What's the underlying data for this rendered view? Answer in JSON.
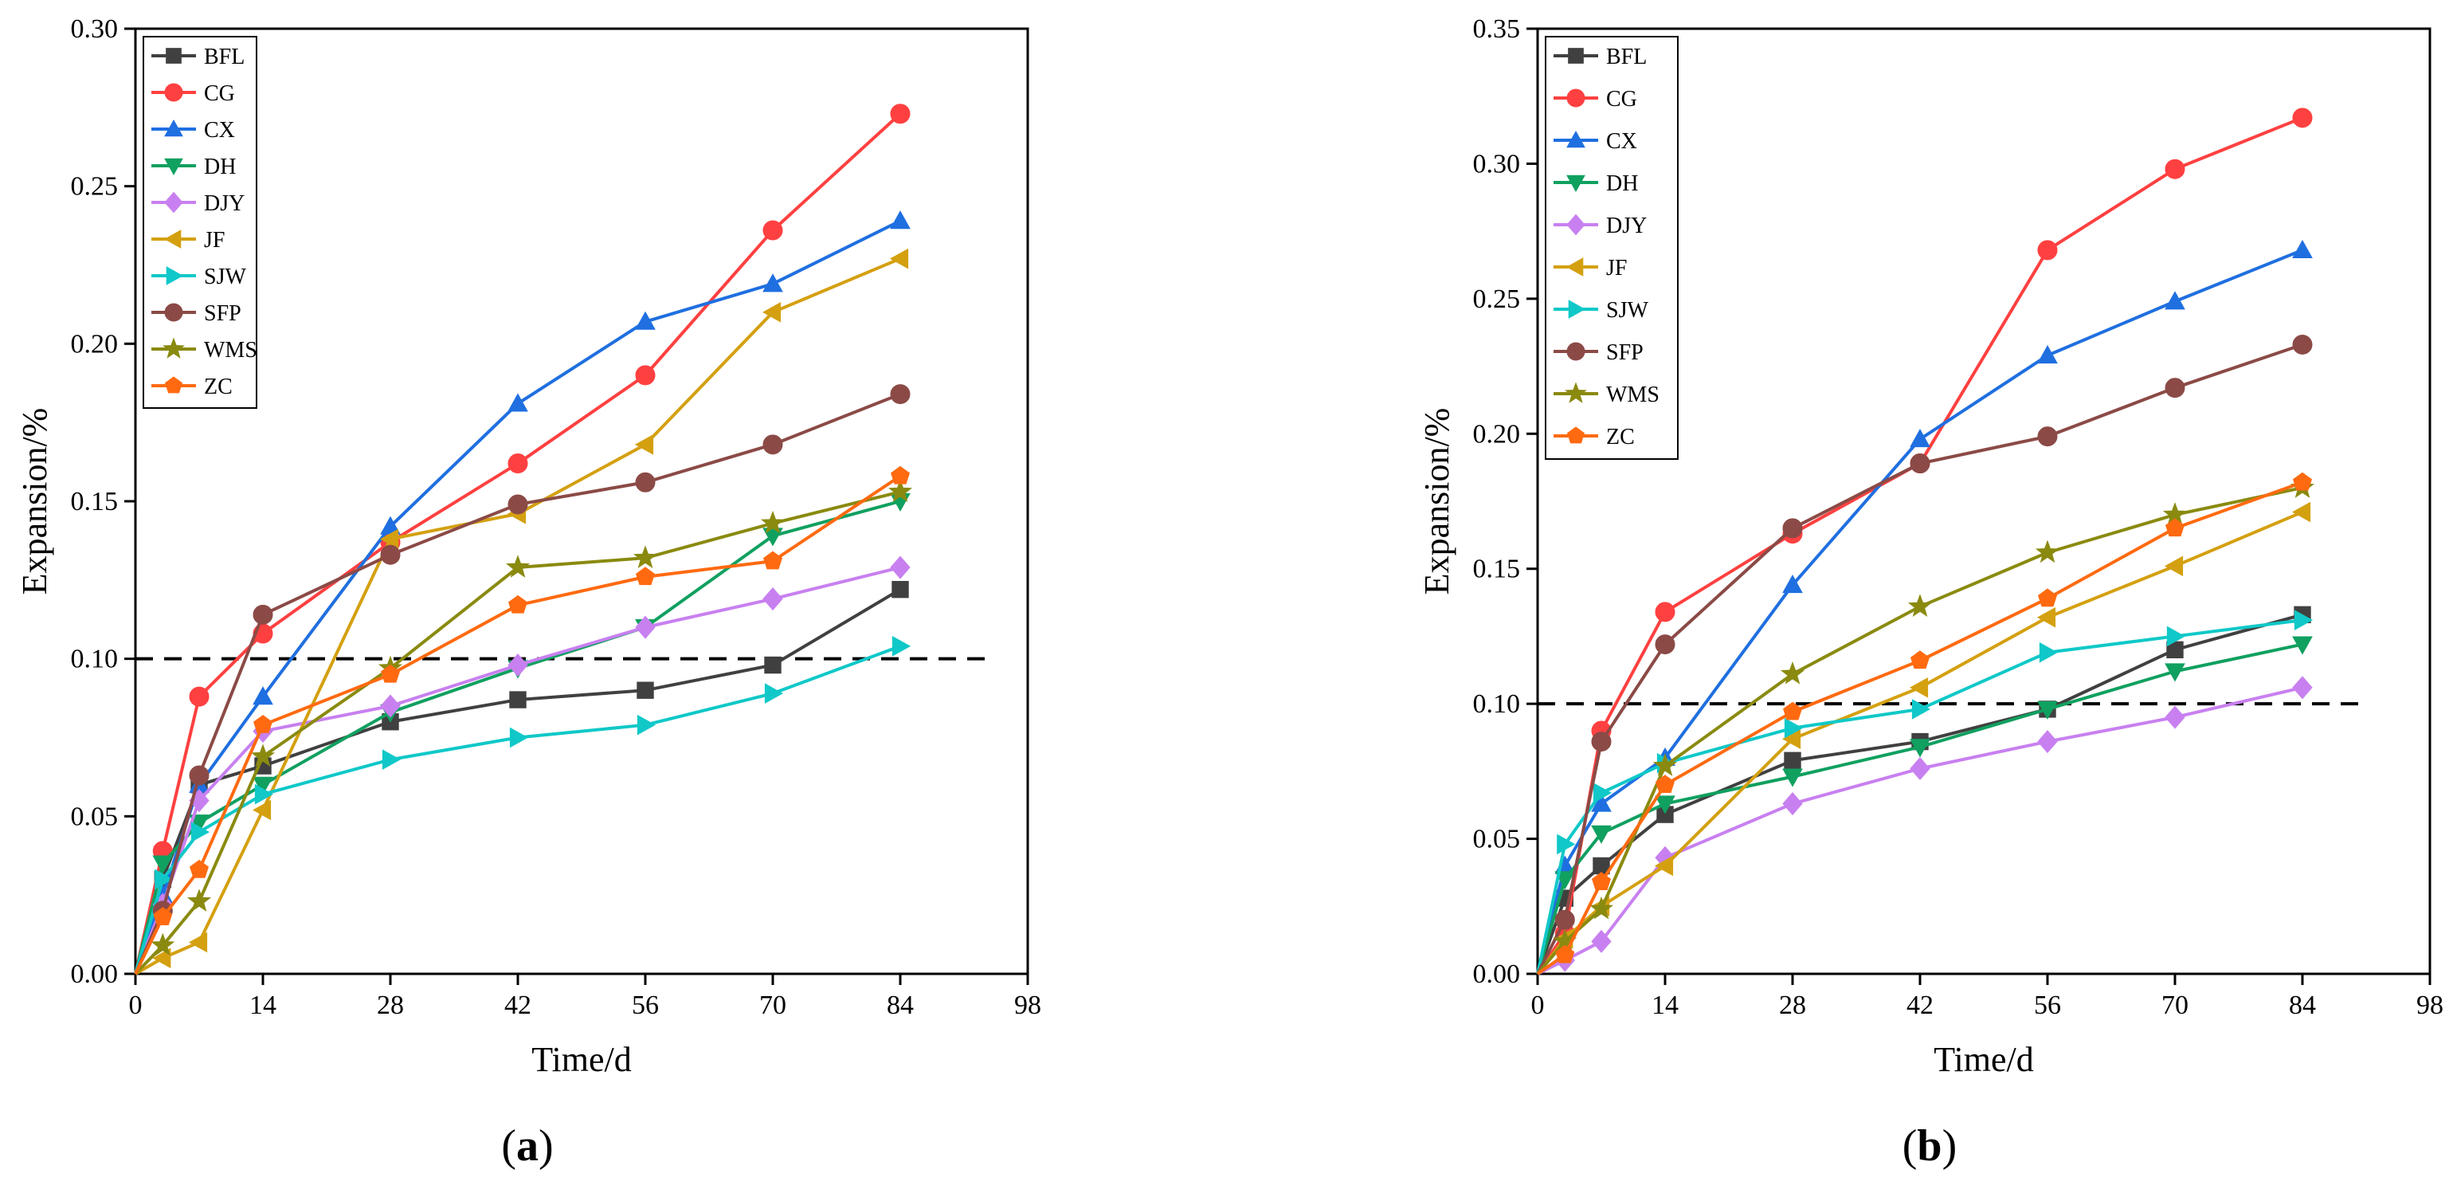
{
  "chart_data": [
    {
      "type": "line",
      "panel_label": "(a)",
      "panel_letter": "a",
      "xlabel": "Time/d",
      "ylabel": "Expansion/%",
      "xlim": [
        0,
        98
      ],
      "ylim": [
        0,
        0.3
      ],
      "xticks": [
        "0",
        "14",
        "28",
        "42",
        "56",
        "70",
        "84",
        "98"
      ],
      "yticks": [
        "0.00",
        "0.05",
        "0.10",
        "0.15",
        "0.20",
        "0.25",
        "0.30"
      ],
      "reference_line": 0.1,
      "legend_position": "top-left",
      "x": [
        0,
        3,
        7,
        14,
        28,
        42,
        56,
        70,
        84
      ],
      "series": [
        {
          "name": "BFL",
          "color": "#404040",
          "marker": "square",
          "values": [
            0,
            0.03,
            0.06,
            0.066,
            0.08,
            0.087,
            0.09,
            0.098,
            0.122
          ]
        },
        {
          "name": "CG",
          "color": "#ff4040",
          "marker": "circle",
          "values": [
            0,
            0.039,
            0.088,
            0.108,
            0.137,
            0.162,
            0.19,
            0.236,
            0.273
          ]
        },
        {
          "name": "CX",
          "color": "#1f6fe0",
          "marker": "triangle-up",
          "values": [
            0,
            0.025,
            0.06,
            0.088,
            0.142,
            0.181,
            0.207,
            0.219,
            0.239
          ]
        },
        {
          "name": "DH",
          "color": "#10a060",
          "marker": "triangle-down",
          "values": [
            0,
            0.035,
            0.048,
            0.06,
            0.083,
            0.097,
            0.11,
            0.139,
            0.15
          ]
        },
        {
          "name": "DJY",
          "color": "#c880f0",
          "marker": "diamond",
          "values": [
            0,
            0.022,
            0.055,
            0.077,
            0.085,
            0.098,
            0.11,
            0.119,
            0.129
          ]
        },
        {
          "name": "JF",
          "color": "#d4a010",
          "marker": "triangle-left",
          "values": [
            0,
            0.005,
            0.01,
            0.052,
            0.138,
            0.146,
            0.168,
            0.21,
            0.227
          ]
        },
        {
          "name": "SJW",
          "color": "#10c8c8",
          "marker": "triangle-right",
          "values": [
            0,
            0.03,
            0.045,
            0.057,
            0.068,
            0.075,
            0.079,
            0.089,
            0.104
          ]
        },
        {
          "name": "SFP",
          "color": "#8b4a46",
          "marker": "circle",
          "values": [
            0,
            0.02,
            0.063,
            0.114,
            0.133,
            0.149,
            0.156,
            0.168,
            0.184
          ]
        },
        {
          "name": "WMS",
          "color": "#8a8a10",
          "marker": "star",
          "values": [
            0,
            0.009,
            0.023,
            0.069,
            0.097,
            0.129,
            0.132,
            0.143,
            0.153
          ]
        },
        {
          "name": "ZC",
          "color": "#ff6a10",
          "marker": "pentagon",
          "values": [
            0,
            0.018,
            0.033,
            0.079,
            0.095,
            0.117,
            0.126,
            0.131,
            0.158
          ]
        }
      ]
    },
    {
      "type": "line",
      "panel_label": "(b)",
      "panel_letter": "b",
      "xlabel": "Time/d",
      "ylabel": "Expansion/%",
      "xlim": [
        0,
        98
      ],
      "ylim": [
        0,
        0.35
      ],
      "xticks": [
        "0",
        "14",
        "28",
        "42",
        "56",
        "70",
        "84",
        "98"
      ],
      "yticks": [
        "0.00",
        "0.05",
        "0.10",
        "0.15",
        "0.20",
        "0.25",
        "0.30",
        "0.35"
      ],
      "reference_line": 0.1,
      "legend_position": "top-left",
      "x": [
        0,
        3,
        7,
        14,
        28,
        42,
        56,
        70,
        84
      ],
      "series": [
        {
          "name": "BFL",
          "color": "#404040",
          "marker": "square",
          "values": [
            0,
            0.028,
            0.04,
            0.059,
            0.079,
            0.086,
            0.098,
            0.12,
            0.133
          ]
        },
        {
          "name": "CG",
          "color": "#ff4040",
          "marker": "circle",
          "values": [
            0,
            0.015,
            0.09,
            0.134,
            0.163,
            0.189,
            0.268,
            0.298,
            0.317
          ]
        },
        {
          "name": "CX",
          "color": "#1f6fe0",
          "marker": "triangle-up",
          "values": [
            0,
            0.04,
            0.063,
            0.08,
            0.144,
            0.198,
            0.229,
            0.249,
            0.268
          ]
        },
        {
          "name": "DH",
          "color": "#10a060",
          "marker": "triangle-down",
          "values": [
            0,
            0.035,
            0.052,
            0.063,
            0.073,
            0.084,
            0.098,
            0.112,
            0.122
          ]
        },
        {
          "name": "DJY",
          "color": "#c880f0",
          "marker": "diamond",
          "values": [
            0,
            0.005,
            0.012,
            0.043,
            0.063,
            0.076,
            0.086,
            0.095,
            0.106
          ]
        },
        {
          "name": "JF",
          "color": "#d4a010",
          "marker": "triangle-left",
          "values": [
            0,
            0.013,
            0.025,
            0.04,
            0.087,
            0.106,
            0.132,
            0.151,
            0.171
          ]
        },
        {
          "name": "SJW",
          "color": "#10c8c8",
          "marker": "triangle-right",
          "values": [
            0,
            0.048,
            0.067,
            0.078,
            0.091,
            0.098,
            0.119,
            0.125,
            0.131
          ]
        },
        {
          "name": "SFP",
          "color": "#8b4a46",
          "marker": "circle",
          "values": [
            0,
            0.02,
            0.086,
            0.122,
            0.165,
            0.189,
            0.199,
            0.217,
            0.233
          ]
        },
        {
          "name": "WMS",
          "color": "#8a8a10",
          "marker": "star",
          "values": [
            0,
            0.012,
            0.024,
            0.077,
            0.111,
            0.136,
            0.156,
            0.17,
            0.18
          ]
        },
        {
          "name": "ZC",
          "color": "#ff6a10",
          "marker": "pentagon",
          "values": [
            0,
            0.007,
            0.034,
            0.07,
            0.097,
            0.116,
            0.139,
            0.165,
            0.182
          ]
        }
      ]
    }
  ]
}
